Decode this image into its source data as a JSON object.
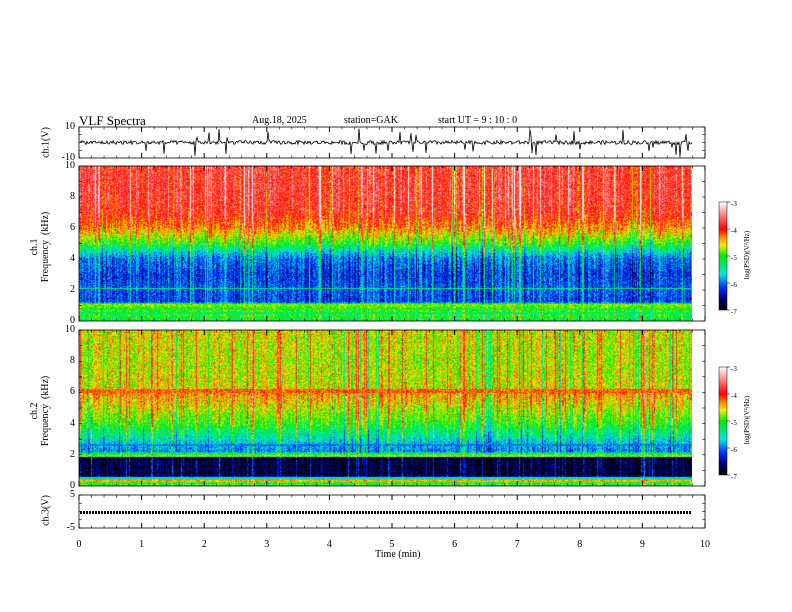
{
  "header": {
    "title": "VLF  Spectra",
    "date": "Aug.18, 2025",
    "station": "station=GAK",
    "start_ut": "start  UT  =   9  : 10 : 0"
  },
  "chart_data": [
    {
      "type": "line",
      "name": "ch1-waveform",
      "ylabel": "ch.1(V)",
      "ylim": [
        -10,
        10
      ],
      "yticks": [
        "10",
        "-10"
      ],
      "xlim": [
        0,
        10
      ],
      "data_extent_min": 9.8,
      "baseline": 0,
      "note_values": "noisy trace around 0 V with spikes up to about +8 / -9 V"
    },
    {
      "type": "heatmap",
      "name": "ch1-spectrogram",
      "ylabel": "ch.1\nFrequency  (kHz)",
      "ylim": [
        0,
        10
      ],
      "yticks": [
        "0",
        "2",
        "4",
        "6",
        "8",
        "10"
      ],
      "xlim": [
        0,
        10
      ],
      "colorbar": {
        "label": "log(PSD)(V²/Hz)",
        "range": [
          -7,
          -3
        ],
        "ticks": [
          "-3",
          "-4",
          "-5",
          "-6",
          "-7"
        ]
      },
      "band_profile_khz": [
        0,
        0.5,
        1,
        1.2,
        2,
        3,
        4,
        4.5,
        5,
        6,
        7,
        8,
        10
      ],
      "band_profile_logpsd": [
        -5.2,
        -5.0,
        -4.9,
        -6.2,
        -6.1,
        -6.2,
        -6.0,
        -5.6,
        -5.0,
        -4.3,
        -3.9,
        -3.8,
        -3.8
      ]
    },
    {
      "type": "heatmap",
      "name": "ch2-spectrogram",
      "ylabel": "ch.2\nFrequency  (kHz)",
      "ylim": [
        0,
        10
      ],
      "yticks": [
        "0",
        "2",
        "4",
        "6",
        "8",
        "10"
      ],
      "xlim": [
        0,
        10
      ],
      "colorbar": {
        "label": "log(PSD)(V²/Hz)",
        "range": [
          -7,
          -3
        ],
        "ticks": [
          "-3",
          "-4",
          "-5",
          "-6",
          "-7"
        ]
      },
      "band_profile_khz": [
        0,
        0.5,
        0.6,
        1.8,
        2,
        2.2,
        3,
        4,
        6,
        6.2,
        8,
        10
      ],
      "band_profile_logpsd": [
        -5.0,
        -5.2,
        -6.8,
        -6.8,
        -5.0,
        -6.0,
        -5.6,
        -5.0,
        -4.3,
        -4.6,
        -4.7,
        -4.6
      ]
    },
    {
      "type": "line",
      "name": "ch3-waveform",
      "ylabel": "ch.3(V)",
      "ylim": [
        -5,
        5
      ],
      "yticks": [
        "5",
        "-5"
      ],
      "xlim": [
        0,
        10
      ],
      "baseline": -0.3
    }
  ],
  "xaxis": {
    "label": "Time  (min)",
    "ticks": [
      "0",
      "1",
      "2",
      "3",
      "4",
      "5",
      "6",
      "7",
      "8",
      "9",
      "10"
    ]
  }
}
